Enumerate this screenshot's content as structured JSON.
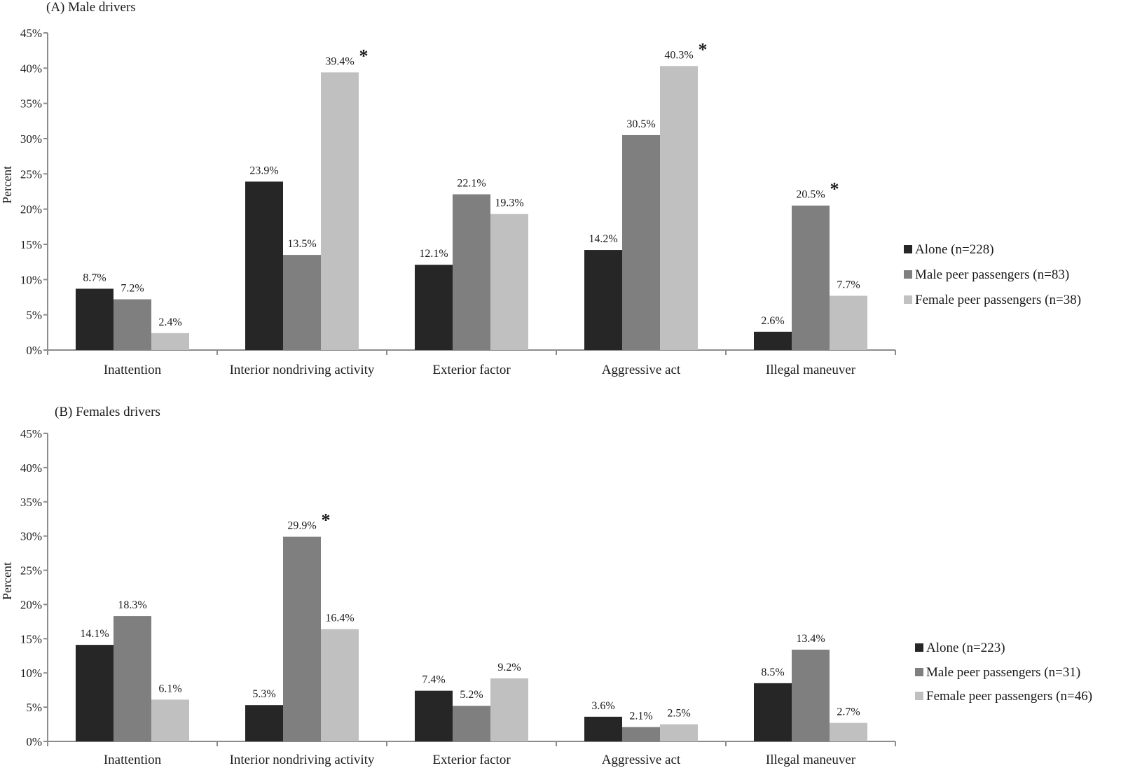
{
  "colors": {
    "alone": "#262626",
    "male": "#7f7f7f",
    "female": "#c0c0c0",
    "axis": "#8c8c8c"
  },
  "chart_data": [
    {
      "type": "bar",
      "title": "(A)  Male drivers",
      "ylabel": "Percent",
      "ylim": [
        0,
        45
      ],
      "y_ticks": [
        "0%",
        "5%",
        "10%",
        "15%",
        "20%",
        "25%",
        "30%",
        "35%",
        "40%",
        "45%"
      ],
      "categories": [
        "Inattention",
        "Interior nondriving activity",
        "Exterior factor",
        "Aggressive act",
        "Illegal maneuver"
      ],
      "series": [
        {
          "name": "Alone (n=228)",
          "values": [
            8.7,
            23.9,
            12.1,
            14.2,
            2.6
          ],
          "labels": [
            "8.7%",
            "23.9%",
            "12.1%",
            "14.2%",
            "2.6%"
          ]
        },
        {
          "name": "Male peer passengers (n=83)",
          "values": [
            7.2,
            13.5,
            22.1,
            30.5,
            20.5
          ],
          "labels": [
            "7.2%",
            "13.5%",
            "22.1%",
            "30.5%",
            "20.5%"
          ]
        },
        {
          "name": "Female peer passengers (n=38)",
          "values": [
            2.4,
            39.4,
            19.3,
            40.3,
            7.7
          ],
          "labels": [
            "2.4%",
            "39.4%",
            "19.3%",
            "40.3%",
            "7.7%"
          ]
        }
      ],
      "significant_marker": "*",
      "significant": [
        [
          1,
          2
        ],
        [
          3,
          2
        ],
        [
          4,
          1
        ]
      ],
      "legend_position": "right"
    },
    {
      "type": "bar",
      "title": "(B) Females drivers",
      "ylabel": "Percent",
      "ylim": [
        0,
        45
      ],
      "y_ticks": [
        "0%",
        "5%",
        "10%",
        "15%",
        "20%",
        "25%",
        "30%",
        "35%",
        "40%",
        "45%"
      ],
      "categories": [
        "Inattention",
        "Interior nondriving activity",
        "Exterior factor",
        "Aggressive act",
        "Illegal maneuver"
      ],
      "series": [
        {
          "name": "Alone (n=223)",
          "values": [
            14.1,
            5.3,
            7.4,
            3.6,
            8.5
          ],
          "labels": [
            "14.1%",
            "5.3%",
            "7.4%",
            "3.6%",
            "8.5%"
          ]
        },
        {
          "name": "Male peer passengers (n=31)",
          "values": [
            18.3,
            29.9,
            5.2,
            2.1,
            13.4
          ],
          "labels": [
            "18.3%",
            "29.9%",
            "5.2%",
            "2.1%",
            "13.4%"
          ]
        },
        {
          "name": "Female peer passengers (n=46)",
          "values": [
            6.1,
            16.4,
            9.2,
            2.5,
            2.7
          ],
          "labels": [
            "6.1%",
            "16.4%",
            "9.2%",
            "2.5%",
            "2.7%"
          ]
        }
      ],
      "significant_marker": "*",
      "significant": [
        [
          1,
          1
        ]
      ],
      "legend_position": "right"
    }
  ]
}
